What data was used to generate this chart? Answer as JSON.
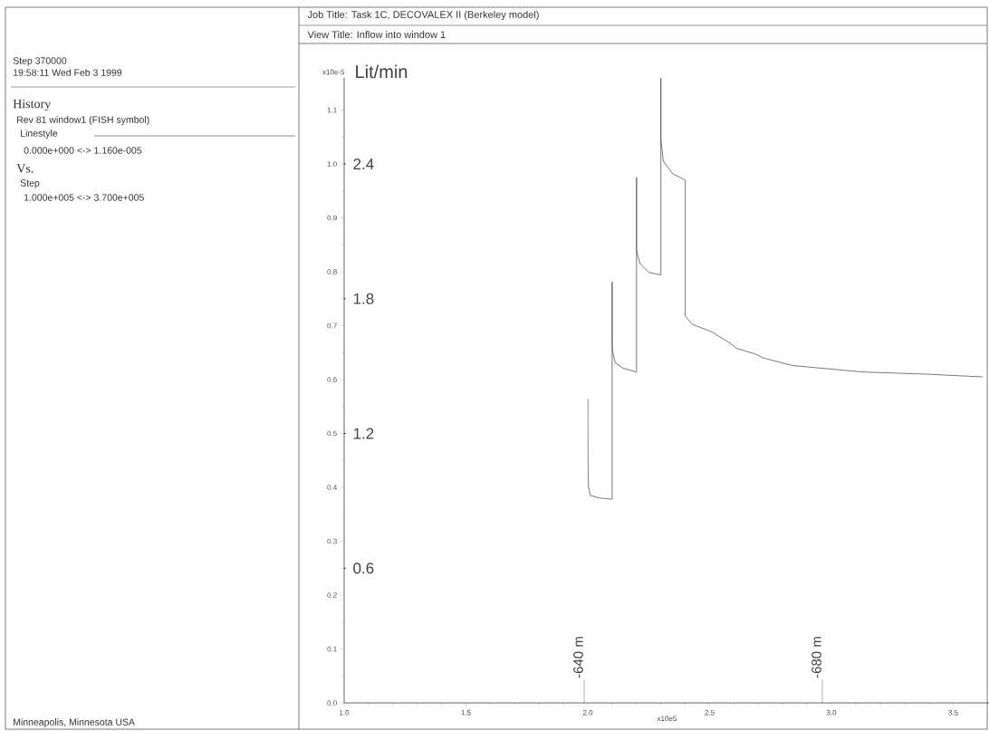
{
  "chart_data": {
    "type": "line",
    "title": "Job Title: Task 1C, DECOVALEX II (Berkeley model)",
    "subtitle": "View Title: Inflow into window 1",
    "xlabel": "x10e5",
    "ylabel": "x10e-5",
    "y2label": "Lit/min",
    "xlim": [
      1.0,
      3.65
    ],
    "ylim": [
      0,
      1.16
    ],
    "y2lim": [
      0,
      2.784
    ],
    "xticks": [
      {
        "value": 1.0,
        "label": "1.0"
      },
      {
        "value": 1.5,
        "label": "1.5"
      },
      {
        "value": 2.0,
        "label": "2.0"
      },
      {
        "value": 2.5,
        "label": "2.5"
      },
      {
        "value": 3.0,
        "label": "3.0"
      },
      {
        "value": 3.5,
        "label": "3.5"
      }
    ],
    "yticks": [
      {
        "value": 0,
        "label": "0.0"
      },
      {
        "value": 0.1,
        "label": "0.1"
      },
      {
        "value": 0.2,
        "label": "0.2"
      },
      {
        "value": 0.3,
        "label": "0.3"
      },
      {
        "value": 0.4,
        "label": "0.4"
      },
      {
        "value": 0.5,
        "label": "0.5"
      },
      {
        "value": 0.6,
        "label": "0.6"
      },
      {
        "value": 0.7,
        "label": "0.7"
      },
      {
        "value": 0.8,
        "label": "0.8"
      },
      {
        "value": 0.9,
        "label": "0.9"
      },
      {
        "value": 1.0,
        "label": "1.0"
      },
      {
        "value": 1.1,
        "label": "1.1"
      }
    ],
    "y2ticks": [
      0.6,
      1.2,
      1.8,
      2.4
    ],
    "series": [
      {
        "color": "#555555",
        "x": [
          2.0,
          2.001,
          2.003,
          2.01,
          2.05,
          2.1,
          2.1,
          2.1,
          2.105,
          2.113,
          2.145,
          2.2,
          2.2,
          2.2,
          2.205,
          2.215,
          2.25,
          2.3,
          2.3,
          2.3,
          2.31,
          2.348,
          2.4,
          2.4,
          2.43,
          2.484,
          2.51,
          2.586,
          2.61,
          2.69,
          2.72,
          2.84,
          3.13,
          3.39,
          3.62
        ],
        "values": [
          0.564,
          0.44,
          0.4,
          0.385,
          0.38,
          0.378,
          0.781,
          0.66,
          0.645,
          0.631,
          0.621,
          0.614,
          0.975,
          0.841,
          0.83,
          0.815,
          0.799,
          0.794,
          1.159,
          1.046,
          1.005,
          0.982,
          0.97,
          0.718,
          0.702,
          0.693,
          0.688,
          0.667,
          0.658,
          0.647,
          0.64,
          0.626,
          0.614,
          0.61,
          0.605
        ]
      }
    ],
    "annotations": [
      "Step 370000",
      "19:58:11 Wed Feb  3 1999",
      "History",
      "Rev 81 window1 (FISH symbol)",
      "Linestyle",
      "0.000e+000 <-> 1.160e-005",
      "Vs.",
      "Step",
      "1.000e+005 <-> 3.700e+005",
      "Minneapolis, Minnesota USA",
      "-640 m",
      "-680 m"
    ]
  }
}
